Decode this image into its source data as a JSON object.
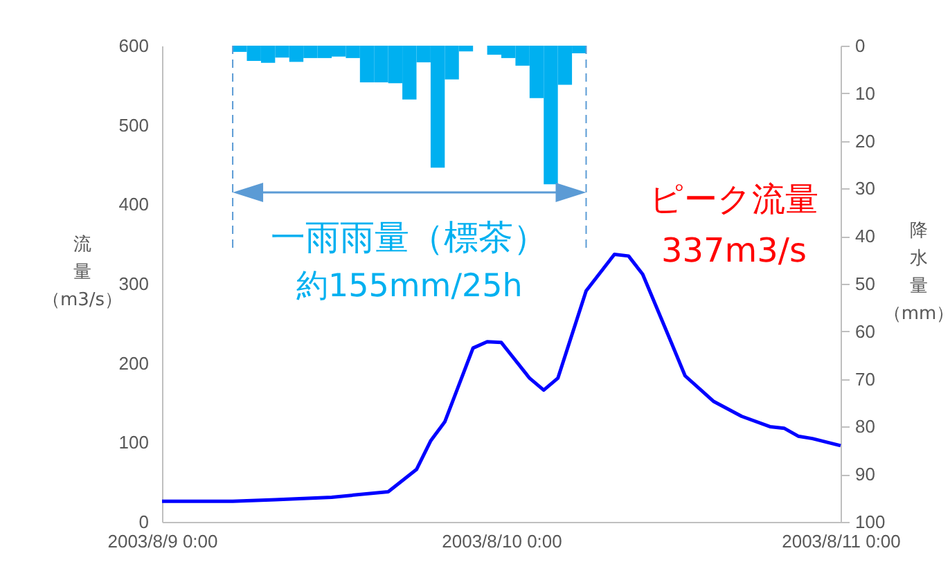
{
  "chart_data": {
    "type": "line",
    "ylabel": "流量（m3/s）",
    "y2label": "降水量（mm）",
    "ylim": [
      0,
      600
    ],
    "yticks": [
      0,
      100,
      200,
      300,
      400,
      500,
      600
    ],
    "y2lim": [
      100,
      0
    ],
    "y2ticks": [
      0,
      10,
      20,
      30,
      40,
      50,
      60,
      70,
      80,
      90,
      100
    ],
    "xlim": [
      "2003-08-09T00:00",
      "2003-08-11T00:00"
    ],
    "xticks": [
      {
        "value": "2003-08-09T00:00",
        "label": "2003/8/9 0:00"
      },
      {
        "value": "2003-08-10T00:00",
        "label": "2003/8/10 0:00"
      },
      {
        "value": "2003-08-11T00:00",
        "label": "2003/8/11 0:00"
      }
    ],
    "grid": false,
    "annotations": [
      "約155mm/25h",
      "ピーク流量",
      "337m3/s"
    ],
    "ref_lines": [
      {
        "axis": "x",
        "value": "2003-08-09T05:00",
        "label": "一雨雨量（標茶）",
        "color": "#5b9bd5",
        "line_style": "dashed"
      },
      {
        "axis": "x",
        "value": "2003-08-10T06:00",
        "color": "#5b9bd5",
        "line_style": "dashed"
      }
    ],
    "series": [
      {
        "type": "bar",
        "axis": "y2",
        "color": "#00b0f0",
        "x": [
          "2003-08-09T05:30",
          "2003-08-09T06:30",
          "2003-08-09T07:30",
          "2003-08-09T08:30",
          "2003-08-09T09:30",
          "2003-08-09T10:30",
          "2003-08-09T11:30",
          "2003-08-09T12:30",
          "2003-08-09T13:30",
          "2003-08-09T14:30",
          "2003-08-09T15:30",
          "2003-08-09T16:30",
          "2003-08-09T17:30",
          "2003-08-09T18:30",
          "2003-08-09T19:30",
          "2003-08-09T20:30",
          "2003-08-09T21:30",
          "2003-08-09T22:30",
          "2003-08-09T23:30",
          "2003-08-10T00:30",
          "2003-08-10T01:30",
          "2003-08-10T02:30",
          "2003-08-10T03:30",
          "2003-08-10T04:30",
          "2003-08-10T05:30"
        ],
        "values": [
          1.3,
          3.2,
          3.6,
          2.5,
          3.4,
          2.6,
          2.6,
          2.3,
          2.6,
          7.7,
          7.7,
          7.9,
          11.3,
          3.5,
          25.6,
          7.1,
          1.2,
          0,
          1.9,
          2.6,
          4.2,
          11,
          29.1,
          8.2,
          1.6
        ]
      },
      {
        "color": "#0000ff",
        "x": [
          "2003-08-09T00:00",
          "2003-08-09T05:00",
          "2003-08-09T08:00",
          "2003-08-09T12:00",
          "2003-08-09T16:00",
          "2003-08-09T18:00",
          "2003-08-09T19:00",
          "2003-08-09T20:00",
          "2003-08-09T22:00",
          "2003-08-09T23:00",
          "2003-08-10T00:00",
          "2003-08-10T02:00",
          "2003-08-10T03:00",
          "2003-08-10T04:00",
          "2003-08-10T06:00",
          "2003-08-10T08:00",
          "2003-08-10T09:00",
          "2003-08-10T10:00",
          "2003-08-10T12:00",
          "2003-08-10T13:00",
          "2003-08-10T15:00",
          "2003-08-10T17:00",
          "2003-08-10T19:00",
          "2003-08-10T20:00",
          "2003-08-10T21:00",
          "2003-08-10T22:00",
          "2003-08-11T00:00"
        ],
        "values": [
          26,
          26,
          28,
          31,
          38,
          66,
          102,
          126,
          219,
          227,
          226,
          181,
          166,
          181,
          291,
          337,
          335,
          312,
          227,
          184,
          152,
          133,
          120,
          118,
          108,
          105,
          96
        ]
      }
    ]
  }
}
